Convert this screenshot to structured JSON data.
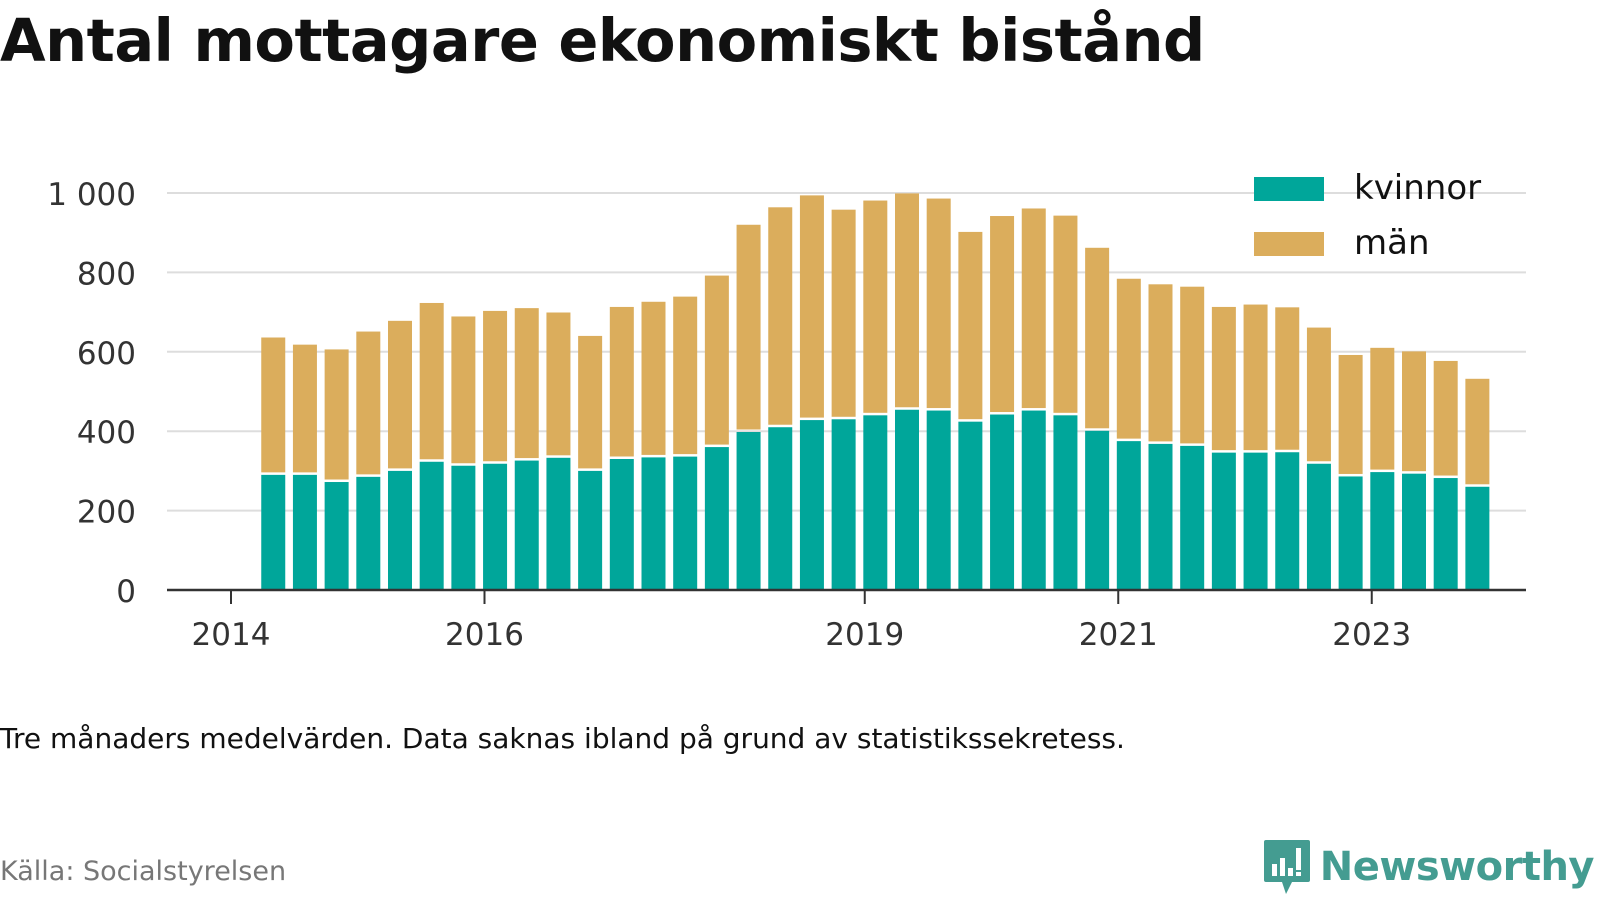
{
  "title": "Antal mottagare ekonomiskt bistånd",
  "note": "Tre månaders medelvärden. Data saknas ibland på grund av statistikssekretess.",
  "source": "Källa: Socialstyrelsen",
  "brand": {
    "name": "Newsworthy",
    "color": "#449c91",
    "icon": "newsworthy-logo-icon"
  },
  "colors": {
    "kvinnor": "#00a69a",
    "man": "#dbad5c",
    "grid": "#dddddd",
    "axis": "#333333"
  },
  "chart_data": {
    "type": "bar",
    "stacked": true,
    "x_type": "date",
    "dates": [
      "2014-05",
      "2014-08",
      "2014-11",
      "2015-02",
      "2015-05",
      "2015-08",
      "2015-11",
      "2016-02",
      "2016-05",
      "2016-08",
      "2016-11",
      "2017-02",
      "2017-05",
      "2017-08",
      "2017-11",
      "2018-02",
      "2018-05",
      "2018-08",
      "2018-11",
      "2019-02",
      "2019-05",
      "2019-08",
      "2019-11",
      "2020-02",
      "2020-05",
      "2020-08",
      "2020-11",
      "2021-02",
      "2021-05",
      "2021-08",
      "2021-11",
      "2022-02",
      "2022-05",
      "2022-08",
      "2022-11",
      "2023-02",
      "2023-05",
      "2023-08",
      "2023-11"
    ],
    "series": [
      {
        "name": "kvinnor",
        "values": [
          290,
          290,
          272,
          285,
          300,
          323,
          313,
          318,
          326,
          333,
          300,
          330,
          334,
          336,
          360,
          398,
          410,
          428,
          430,
          440,
          454,
          452,
          424,
          442,
          452,
          440,
          401,
          375,
          368,
          363,
          346,
          346,
          347,
          318,
          286,
          297,
          293,
          282,
          260
        ]
      },
      {
        "name": "män",
        "values": [
          346,
          328,
          334,
          366,
          378,
          400,
          376,
          385,
          384,
          366,
          340,
          383,
          392,
          403,
          432,
          522,
          554,
          566,
          528,
          541,
          545,
          534,
          478,
          500,
          509,
          503,
          461,
          409,
          402,
          401,
          367,
          373,
          365,
          343,
          306,
          313,
          308,
          295,
          272
        ]
      }
    ],
    "ylim": [
      0,
      1000
    ],
    "yticks": [
      0,
      200,
      400,
      600,
      800,
      1000
    ],
    "ytick_labels": [
      "0",
      "200",
      "400",
      "600",
      "800",
      "1 000"
    ],
    "xticks": [
      "2014",
      "2016",
      "2019",
      "2021",
      "2023"
    ],
    "grid": true,
    "legend": {
      "position": "top-right",
      "labels": [
        "kvinnor",
        "män"
      ]
    }
  }
}
